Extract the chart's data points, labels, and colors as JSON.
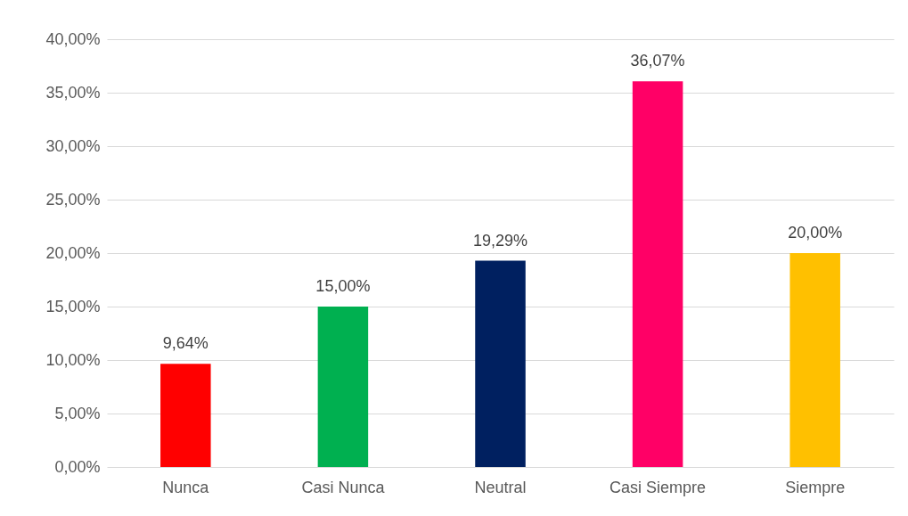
{
  "chart_data": {
    "type": "bar",
    "categories": [
      "Nunca",
      "Casi Nunca",
      "Neutral",
      "Casi Siempre",
      "Siempre"
    ],
    "values": [
      9.64,
      15.0,
      19.29,
      36.07,
      20.0
    ],
    "colors": [
      "#ff0000",
      "#00b050",
      "#002060",
      "#ff0066",
      "#ffc000"
    ],
    "value_labels": [
      "9,64%",
      "15,00%",
      "19,29%",
      "36,07%",
      "20,00%"
    ],
    "ylim": [
      0,
      40
    ],
    "yticks": [
      {
        "value": 0,
        "label": "0,00%"
      },
      {
        "value": 5,
        "label": "5,00%"
      },
      {
        "value": 10,
        "label": "10,00%"
      },
      {
        "value": 15,
        "label": "15,00%"
      },
      {
        "value": 20,
        "label": "20,00%"
      },
      {
        "value": 25,
        "label": "25,00%"
      },
      {
        "value": 30,
        "label": "30,00%"
      },
      {
        "value": 35,
        "label": "35,00%"
      },
      {
        "value": 40,
        "label": "40,00%"
      }
    ],
    "grid": "y"
  }
}
